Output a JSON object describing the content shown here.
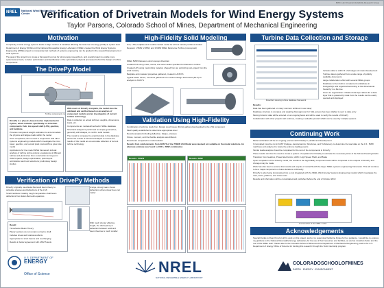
{
  "header": {
    "top_note": "BWC Lab Drivetrain Reliability Research Group",
    "logo_text": "National Wind Technology Center",
    "title": "Verification of Drivetrain Models for Wind Energy Systems",
    "subtitle": "Taylor Parsons, Colorado School of Mines, Department of Mechanical Engineering"
  },
  "sections": {
    "motivation": "Motivation",
    "drivepy_model": "The DrivePy Model",
    "verification": "Verification of DrivePy Methods",
    "fidelity": "High-Fidelity Solid Modeling",
    "validation": "Validation Using High-Fidelity Components",
    "turbine_data": "Turbine Data Collection and Storage",
    "continuing": "Continuing Work",
    "acknowledgements": "Acknowledgements"
  },
  "motivation_bullets": [
    "Complexity of wind energy systems leads to large number of variables affecting the total cost of energy (COE) at a plant level",
    "Department of Energy (DOE) and the National Renewable Energy Laboratory (NREL) created the Wind Energy Systems Engineering (WISE) project to incorporate fast methods of systems engineering can be applied in the research/development of wind systems",
    "The goal of the project is to create a framework tool set for wind energy researchers, and overall project to enable more systems-level tools, to better optimization and identification of the optimization physical processes behind the design of turbine components"
  ],
  "drivepy_caption": "Turbine components modeled in DrivePy",
  "drivepy_left": [
    "DrivePy is a physics-based model, implemented in Python, which includes specifically on drivetrain components: hub, low speed shaft (LSS), gearbox, and bedplate.",
    "Previous component weight estimation to accommodate the physics and fatigue loads within the model",
    "Once completed, can be used in conjunction with other systems engineering models which investigate the rotor, tower, gearbox, and overall plant costs within a given site model",
    "Applications for the model WISE framework include: analysis of turbine sizing options; evaluations of different turbine and plant sizes from construction to long term O&M impacts; design optimization; plant layout optimization and cost reductions; preliminary design studies"
  ],
  "drivepy_right": [
    "With much of DrivePy complete, the model must be validated and verified based on an analysis of component models and an investigation of current turbine technology",
    "Data is collected on actual turbines: weights, dimensions, loads, etc.",
    "Components are modeled/meshed in NREL database",
    "Structural analysis is performed on simple geometries, generally with Abaqus, to confirm solid models",
    "The model is compared to empirical data in the database and to the results of structural analysis to ensure the results of the model are an accurate reflection of current turbine technology"
  ],
  "verification_text": [
    "DrivePy originally used Euler-Bernoulli beam theory to calculate stresses and deflections of the LSS",
    "Small cantilever rotating rough comparative shaft beam deflections from Euler-Bernoulli equations",
    "A large, strong beam shows deflections where shear does not matter",
    "Initially, Timoshenko beam theory was utilized in place of Euler-Bernoulli (EB) theory"
  ],
  "verification_result": [
    "Result:",
    "Timoshenko Beam Theory",
    "Planar sections do not remain normal to shaft",
    "Includes shear and rotational effects",
    "Appropriate for short beams and overhanging",
    "Results in better agreement with ANSYS tests"
  ],
  "verification_side": "With much shorter effective length, the discrepancy in deflection between solid and beam theories is much smaller",
  "fidelity_bullets": [
    "Hub, LSS, bedplate and models created model for all four industry turbines studied",
    "Repower 1.5MW, 2.3MW, and 3.6MW NREL Reference Turbine (conceptual)",
    "NREL 5MW Reference wind concept drivetrain",
    "Created hub using mass, inertia, and outer radius specified for Reference turbine",
    "Created LSS using maximizing material, shaped from an optimizing sub-project from the wind industry",
    "Bedplate and modeled properties gathered, created in ANSYS",
    "Typical loads: forces, moments gathered from various design load cases (DLC) for analysis in ANSYS"
  ],
  "validation_bullets": [
    "Combination of enforce loads from Design Load Cases (DLCs) gathered and applied to the LSS component",
    "Mesh quality established to determine appropriate level",
    "Results analyzed including deflection, fatigue, stresses",
    "Stress, moment, and the flexible analysis was different",
    "Results are compared to model solution"
  ],
  "validation_note": "Results from solid elements from ANSYS of the 750kW LSS Model were deemed not suitable on the model solutions. An alternate estimate was found: a 1000 + 5MW combination",
  "result_labels": [
    "Results: 750kW",
    "Results: 5MW"
  ],
  "turbine_caption": "Flowchart showing turbine database framework",
  "turbine_bullets": [
    "Includes data to within 5 of all stages of model development",
    "Turbine data is gathered from a wide range of publicly available documents",
    "Large collaboration effort with several NREL groups",
    "Database is then built to complement a database in PostgreSQL and organized according to the dimensional hierarchy in a file tree",
    "Given an organization of data a data layer allows for a data layer that is powered by data from the results can be easily queried and displayed"
  ],
  "turbine_results": [
    "Results:",
    "Data has been gathered on many common turbines in use today",
    "Database structure is complete and awaiting final approval; for SQL access has been drafted to sent to data entry",
    "Moving forward, data will be entered on an ongoing basis and will be used to verify the results of DrivePy",
    "Collaboration with other projects will continue, creating a valuable product which can be used by multiple systems"
  ],
  "continuing_bullets": [
    "Model verification will be an ongoing process with DrivePy in parallel and development",
    "If completed must be run in FAST (Fatigue, Aerodynamics, Structures, and Turbulence), to determine the load data on the 1.5 - 5MW machines and analyzed to locate the extreme loading events",
    "Similar loads analysis should be completed for the rest of the components in DrivePy",
    "These results can then be used to create a system of equations for DrivePy to estimate the necessary sizes of the hub and bearing blocks",
    "Transition from Gearbox, Power Electronics, HVAC, High Speed Shaft, and Brake",
    "Upon completion of the DrivePy model, the results of the high fidelity component tests will be compared to the outputs of DrivePy and changes may be made",
    "Work has also been to ensure that results and outputs of model fit with the larger NREL systems engineering framework. This will continue to be a major component on future iterations of DrivePy",
    "DrivePy is also being incorporated into a cost integrated with the NREL Wind Energy Systems Engineering models which investigate the rotor, tower, platform, and costs costs",
    "Results and information will be consolidated and published before the end of October 2013"
  ],
  "continuing_caption": "A screenshot of the NREL model",
  "acknowledgements_text": "Special thanks to Ryan King for all his work on this project, and to my supervisor Katherine Dykes for her guidance. I would like to express my gratitude to the National Renewable Energy Laboratory for the use of their resources and facilities, as well as Jonathan Keller and the rest of the NREL staff. Thanks also to the Colorado School of Mines and the Department of Mechanical Engineering, and to the U.S. Department of Energy Office of Science for funding this research through the SULI internship program.",
  "footer": {
    "doe_line1": "U.S. DEPARTMENT OF",
    "doe_line2": "ENERGY",
    "doe_line3": "Office of Science",
    "nrel": "NREL",
    "nrel_sub": "NATIONAL RENEWABLE ENERGY LABORATORY",
    "csm_name": "COLORADOSCHOOLOFMINES",
    "csm_sub": "EARTH · ENERGY · ENVIRONMENT"
  },
  "colors": {
    "header_blue": "#1b4f8a",
    "nrel_blue": "#1b3f73",
    "csm_blue": "#21314d",
    "result_green": "#2f7a2f"
  }
}
